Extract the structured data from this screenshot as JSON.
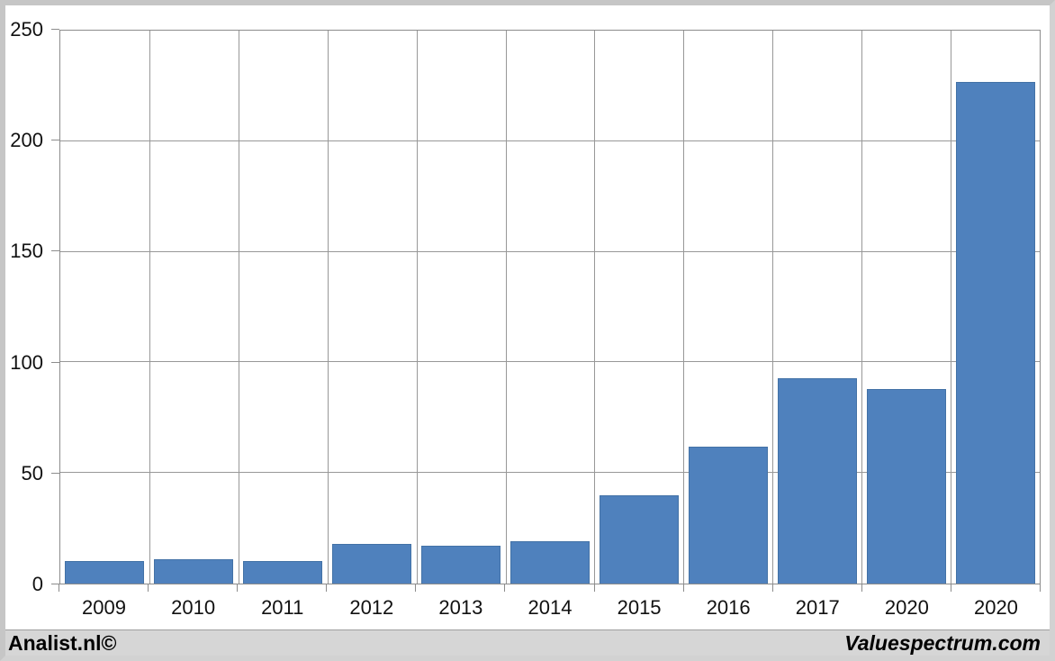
{
  "chart_data": {
    "type": "bar",
    "title": "",
    "xlabel": "",
    "ylabel": "",
    "categories": [
      "2009",
      "2010",
      "2011",
      "2012",
      "2013",
      "2014",
      "2015",
      "2016",
      "2017",
      "2020",
      "2020"
    ],
    "values": [
      10,
      11,
      10,
      18,
      17,
      19,
      40,
      62,
      93,
      88,
      227
    ],
    "ylim": [
      0,
      250
    ],
    "yticks": [
      0,
      50,
      100,
      150,
      200,
      250
    ],
    "grid": true,
    "legend": "none",
    "bar_color": "#4f81bd",
    "bar_border_color": "#4372a6",
    "axis_color": "#8c8c8c",
    "gridline_color": "#989898",
    "tick_label_color": "#111111"
  },
  "footer": {
    "left": "Analist.nl©",
    "right": "Valuespectrum.com",
    "background_color": "#d6d6d6"
  },
  "frame": {
    "border_color": "#c6c6c6",
    "panel_background": "#ffffff"
  }
}
